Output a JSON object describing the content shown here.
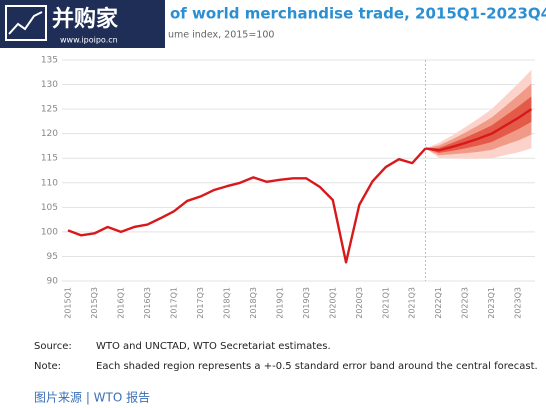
{
  "watermark": {
    "name": "并购家",
    "url": "www.ipoipo.cn"
  },
  "chart_data": {
    "type": "line",
    "title": "of world merchandise trade, 2015Q1-2023Q4",
    "subtitle": "ume index, 2015=100",
    "categories": [
      "2015Q1",
      null,
      "2015Q3",
      null,
      "2016Q1",
      null,
      "2016Q3",
      null,
      "2017Q1",
      null,
      "2017Q3",
      null,
      "2018Q1",
      null,
      "2018Q3",
      null,
      "2019Q1",
      null,
      "2019Q3",
      null,
      "2020Q1",
      null,
      "2020Q3",
      null,
      "2021Q1",
      null,
      "2021Q3",
      null,
      "2022Q1",
      null,
      "2022Q3",
      null,
      "2023Q1",
      null,
      "2023Q3",
      null
    ],
    "series": [
      {
        "color": "#d7191c",
        "values": [
          100.3,
          99.3,
          99.7,
          101.0,
          100.0,
          101.0,
          101.5,
          102.8,
          104.2,
          106.3,
          107.2,
          108.5,
          109.3,
          110.0,
          111.1,
          110.2,
          110.6,
          110.9,
          110.9,
          109.2,
          106.5,
          93.8,
          105.5,
          110.3,
          113.2,
          114.8,
          114.0,
          117.0,
          null,
          null,
          null,
          null,
          null,
          null,
          null,
          null
        ]
      },
      {
        "color": "#d7191c",
        "values": [
          null,
          null,
          null,
          null,
          null,
          null,
          null,
          null,
          null,
          null,
          null,
          null,
          null,
          null,
          null,
          null,
          null,
          null,
          null,
          null,
          null,
          null,
          null,
          null,
          null,
          null,
          null,
          117.0,
          116.6,
          117.3,
          118.1,
          119.0,
          120.0,
          121.6,
          123.2,
          125.0
        ]
      }
    ],
    "bands": [
      {
        "color": "#fbd3cb",
        "upper": [
          null,
          null,
          null,
          null,
          null,
          null,
          null,
          null,
          null,
          null,
          null,
          null,
          null,
          null,
          null,
          null,
          null,
          null,
          null,
          null,
          null,
          null,
          null,
          null,
          null,
          null,
          null,
          117.0,
          118.1,
          119.6,
          121.3,
          123.1,
          125.0,
          127.6,
          130.2,
          133.0
        ],
        "lower": [
          null,
          null,
          null,
          null,
          null,
          null,
          null,
          null,
          null,
          null,
          null,
          null,
          null,
          null,
          null,
          null,
          null,
          null,
          null,
          null,
          null,
          null,
          null,
          null,
          null,
          null,
          null,
          117.0,
          115.1,
          115.0,
          114.9,
          114.9,
          115.0,
          115.6,
          116.2,
          117.0
        ]
      },
      {
        "color": "#f29a88",
        "upper": [
          null,
          null,
          null,
          null,
          null,
          null,
          null,
          null,
          null,
          null,
          null,
          null,
          null,
          null,
          null,
          null,
          null,
          null,
          null,
          null,
          null,
          null,
          null,
          null,
          null,
          null,
          null,
          117.0,
          117.6,
          118.8,
          120.2,
          121.7,
          123.3,
          125.5,
          127.8,
          130.2
        ],
        "lower": [
          null,
          null,
          null,
          null,
          null,
          null,
          null,
          null,
          null,
          null,
          null,
          null,
          null,
          null,
          null,
          null,
          null,
          null,
          null,
          null,
          null,
          null,
          null,
          null,
          null,
          null,
          null,
          117.0,
          115.6,
          115.8,
          116.0,
          116.3,
          116.7,
          117.7,
          118.6,
          119.8
        ]
      },
      {
        "color": "#e45a48",
        "upper": [
          null,
          null,
          null,
          null,
          null,
          null,
          null,
          null,
          null,
          null,
          null,
          null,
          null,
          null,
          null,
          null,
          null,
          null,
          null,
          null,
          null,
          null,
          null,
          null,
          null,
          null,
          null,
          117.0,
          117.1,
          118.1,
          119.2,
          120.4,
          121.7,
          123.6,
          125.5,
          127.6
        ],
        "lower": [
          null,
          null,
          null,
          null,
          null,
          null,
          null,
          null,
          null,
          null,
          null,
          null,
          null,
          null,
          null,
          null,
          null,
          null,
          null,
          null,
          null,
          null,
          null,
          null,
          null,
          null,
          null,
          117.0,
          116.1,
          116.5,
          117.0,
          117.6,
          118.3,
          119.6,
          120.9,
          122.4
        ]
      }
    ],
    "ylim": [
      90,
      135
    ],
    "yticks": [
      90,
      95,
      100,
      105,
      110,
      115,
      120,
      125,
      130,
      135
    ],
    "grid": true,
    "source_label": "Source:",
    "source": "WTO and UNCTAD, WTO Secretariat estimates.",
    "note_label": "Note:",
    "note": "Each shaded region represents a +-0.5 standard error band around the central forecast."
  },
  "caption": "图片来源 | WTO 报告"
}
